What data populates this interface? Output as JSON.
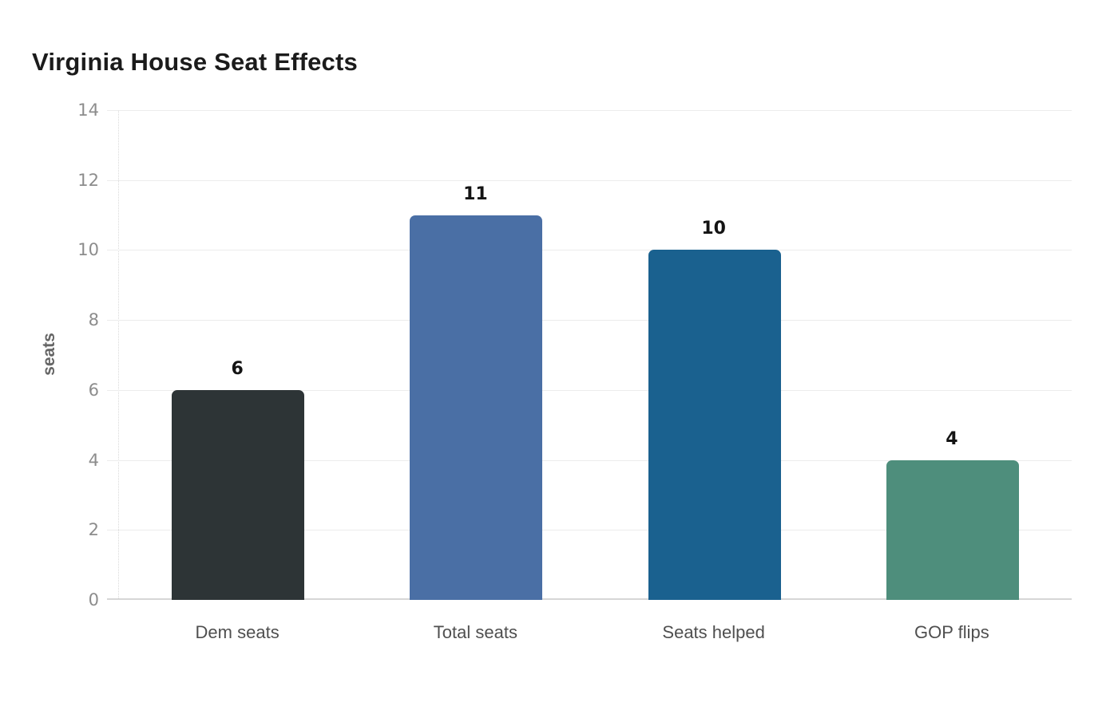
{
  "page": {
    "background": "#ffffff"
  },
  "chart_data": {
    "type": "bar",
    "title": "Virginia House Seat Effects",
    "categories": [
      "Dem seats",
      "Total seats",
      "Seats helped",
      "GOP flips"
    ],
    "values": [
      6,
      11,
      10,
      4
    ],
    "value_labels": [
      "6",
      "11",
      "10",
      "4"
    ],
    "bar_colors": [
      "#2d3436",
      "#4a6fa5",
      "#1a618f",
      "#4e8e7c"
    ],
    "xlabel": "",
    "ylabel": "seats",
    "ylim": [
      0,
      14
    ],
    "yticks": [
      0,
      2,
      4,
      6,
      8,
      10,
      12,
      14
    ],
    "grid": true,
    "legend": "none",
    "styles": {
      "grid_color": "#ececec",
      "baseline_color": "#d6d6d6",
      "axis_edge_color": "#d9d9d9",
      "tick_label_color": "#8c8c8c",
      "category_label_color": "#4f4f4f",
      "value_label_color": "#141414",
      "title_color": "#1b1b1b",
      "ylabel_color": "#666666"
    }
  }
}
